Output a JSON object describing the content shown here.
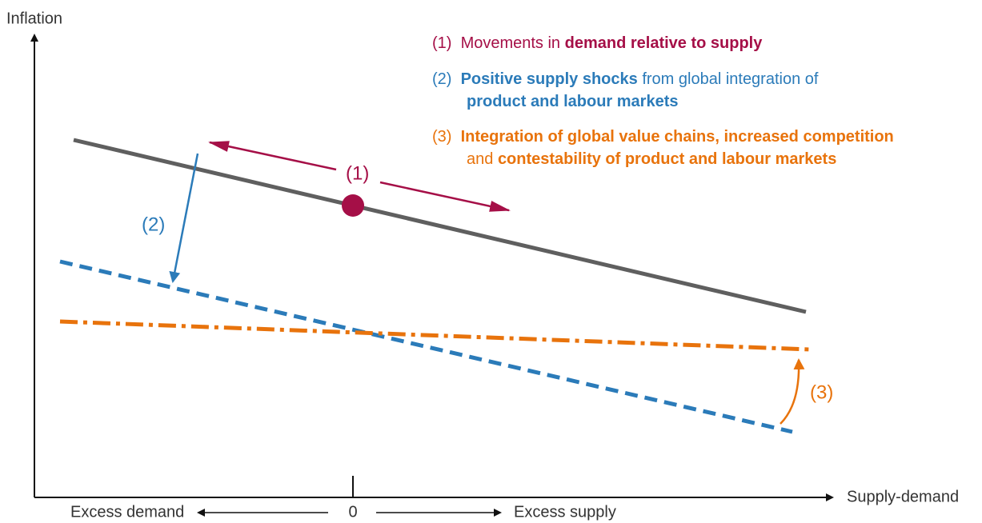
{
  "axes": {
    "y_label": "Inflation",
    "x_label": "Supply-demand",
    "left_label": "Excess demand",
    "origin_label": "0",
    "right_label": "Excess supply"
  },
  "markers": {
    "one": "(1)",
    "two": "(2)",
    "three": "(3)"
  },
  "legend": [
    {
      "color": "#a50f47",
      "lines": [
        [
          {
            "text": "(1)  ",
            "bold": false
          },
          {
            "text": "Movements in ",
            "bold": false
          },
          {
            "text": "demand relative to supply",
            "bold": true
          }
        ]
      ]
    },
    {
      "color": "#2b7bb9",
      "lines": [
        [
          {
            "text": "(2)  ",
            "bold": false
          },
          {
            "text": "Positive supply shocks",
            "bold": true
          },
          {
            "text": " from global integration of",
            "bold": false
          }
        ],
        [
          {
            "text": "product and labour markets",
            "bold": true
          }
        ]
      ]
    },
    {
      "color": "#e8730c",
      "lines": [
        [
          {
            "text": "(3)  ",
            "bold": false
          },
          {
            "text": "Integration of global value chains, increased competition",
            "bold": true
          }
        ],
        [
          {
            "text": "and ",
            "bold": false
          },
          {
            "text": "contestability of product and labour markets",
            "bold": true
          }
        ]
      ]
    }
  ]
}
